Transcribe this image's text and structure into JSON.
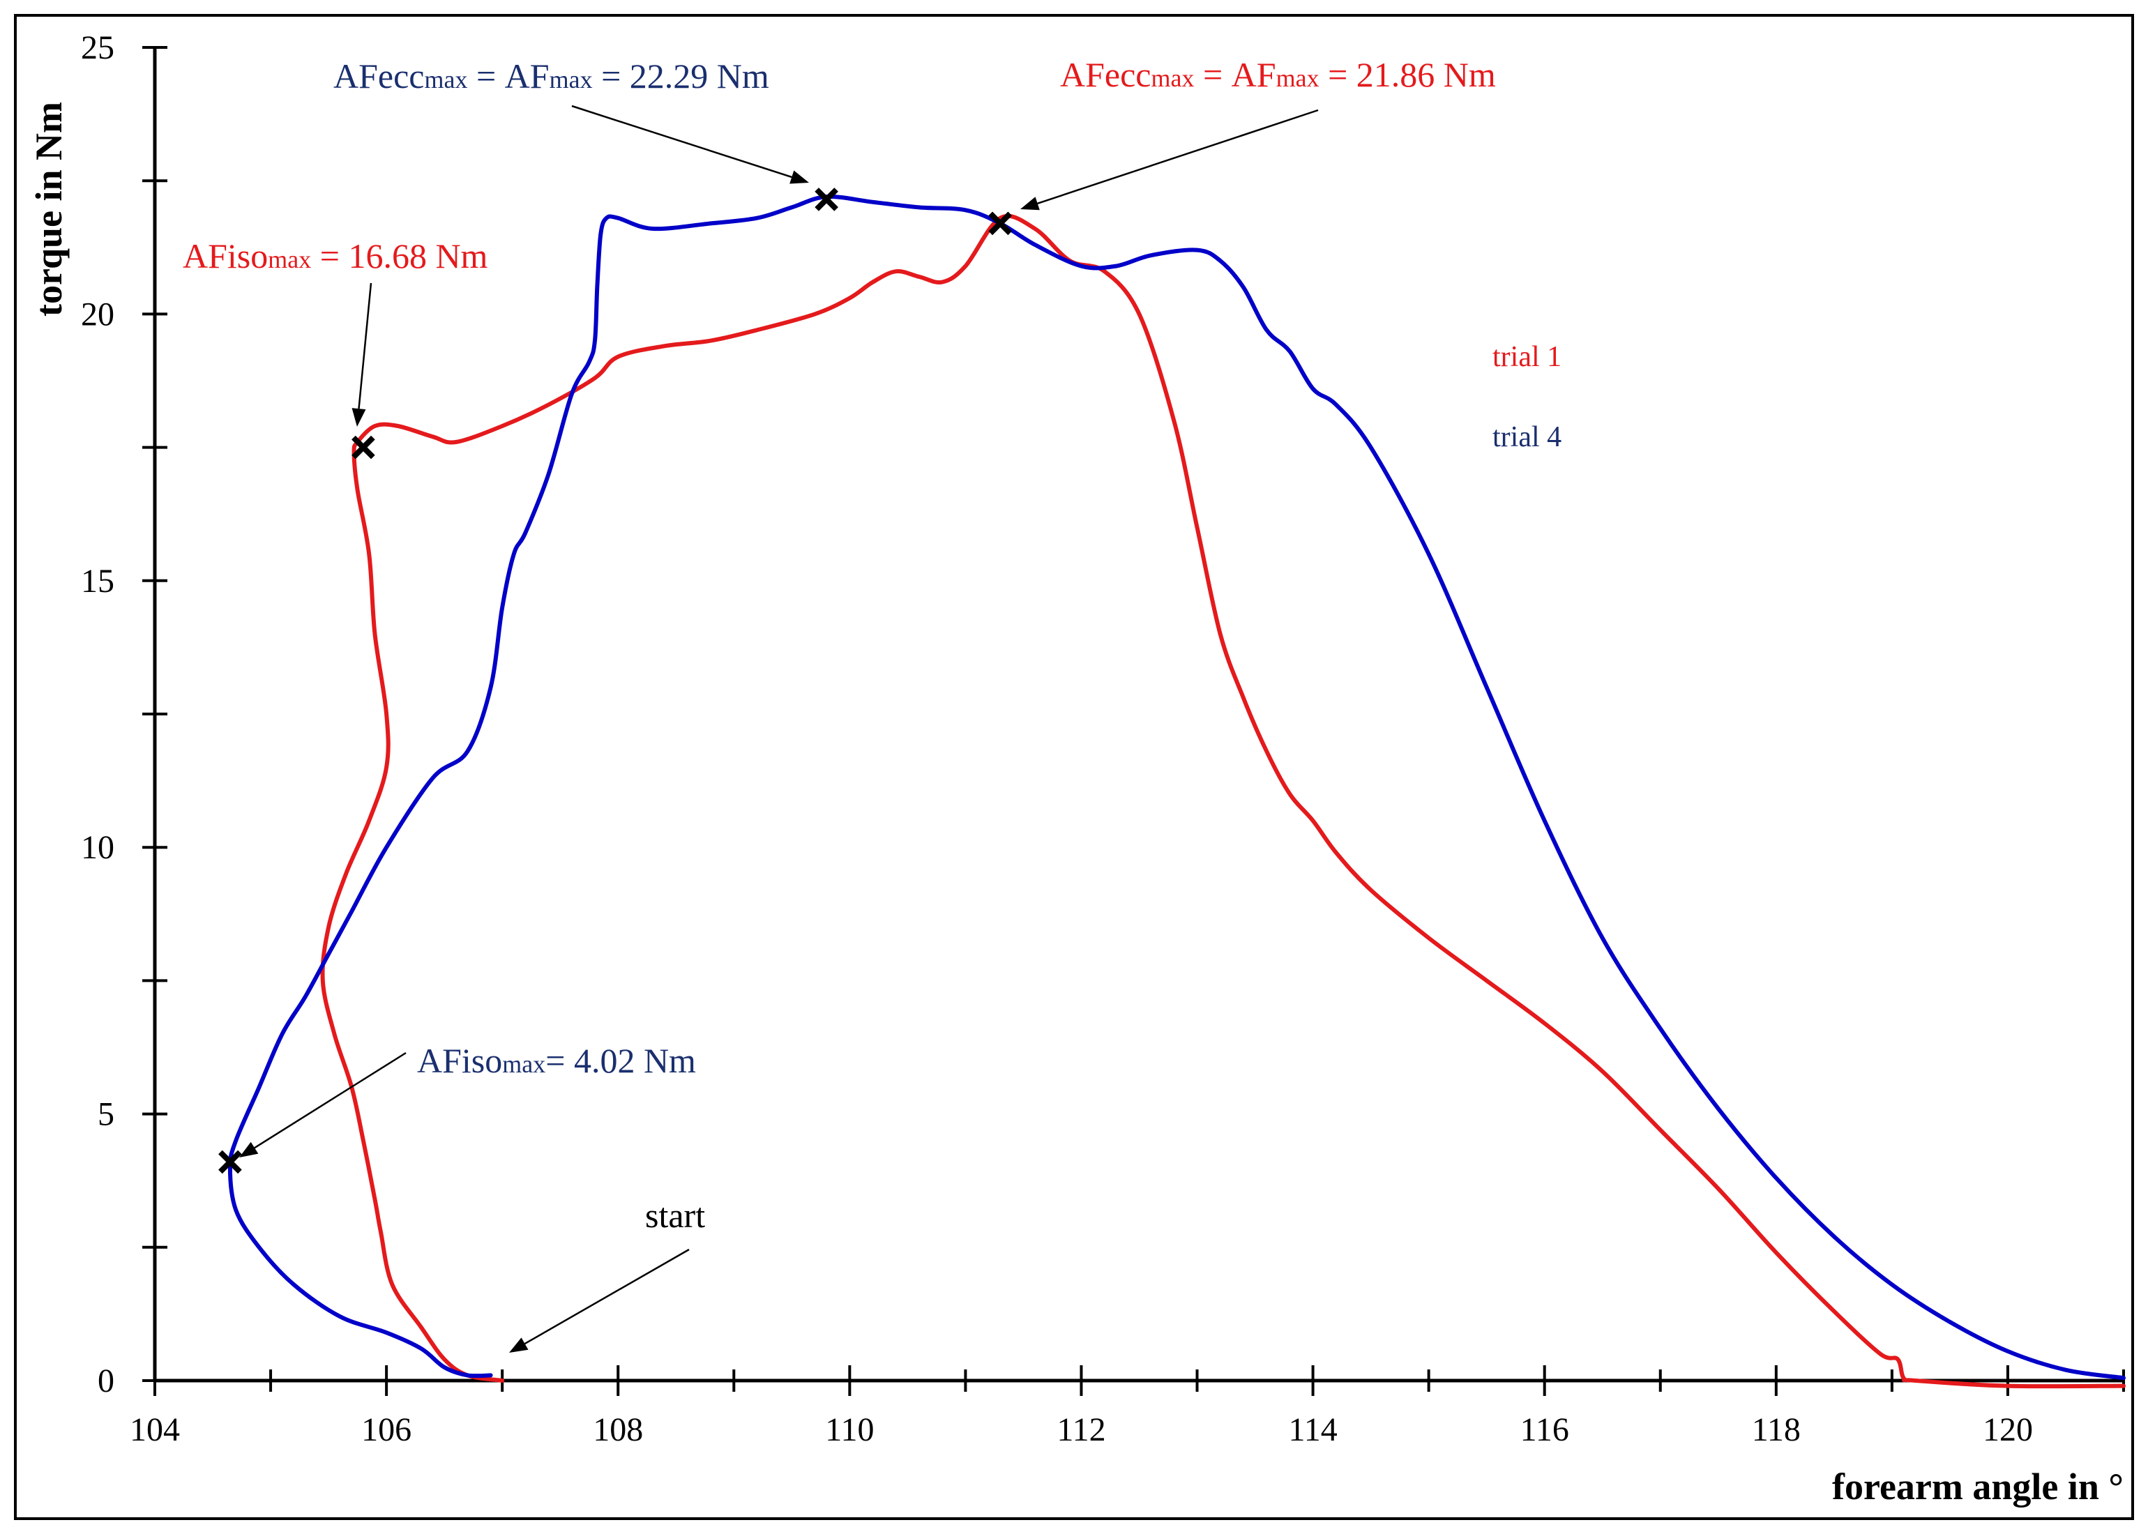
{
  "chart_data": {
    "type": "line",
    "title": "",
    "xlabel": "forearm angle in °",
    "ylabel": "torque in Nm",
    "xlim": [
      104,
      121
    ],
    "ylim": [
      0,
      25
    ],
    "xticks": [
      104,
      106,
      108,
      110,
      112,
      114,
      116,
      118,
      120
    ],
    "yticks": [
      0,
      5,
      10,
      15,
      20,
      25
    ],
    "grid": false,
    "legend_position": "right",
    "series": [
      {
        "name": "trial 1",
        "color": "#e41a1c",
        "x": [
          107.0,
          106.7,
          106.5,
          106.3,
          106.05,
          105.95,
          105.9,
          105.8,
          105.7,
          105.55,
          105.45,
          105.5,
          105.65,
          105.85,
          106.0,
          106.0,
          105.9,
          105.85,
          105.75,
          105.72,
          105.75,
          105.9,
          106.1,
          106.4,
          106.6,
          107.0,
          107.4,
          107.8,
          108.0,
          108.4,
          108.8,
          109.2,
          109.7,
          110.0,
          110.2,
          110.4,
          110.6,
          110.8,
          111.0,
          111.3,
          111.6,
          111.9,
          112.2,
          112.5,
          112.8,
          113.0,
          113.2,
          113.4,
          113.6,
          113.8,
          114.0,
          114.2,
          114.5,
          115.0,
          115.5,
          116.0,
          116.5,
          117.0,
          117.5,
          118.0,
          118.5,
          118.9,
          119.05,
          119.1,
          119.2,
          120.0,
          121.0
        ],
        "y": [
          0.0,
          0.1,
          0.4,
          1.0,
          1.8,
          2.8,
          3.4,
          4.5,
          5.5,
          6.5,
          7.5,
          8.5,
          9.5,
          10.5,
          11.5,
          12.5,
          14.0,
          15.5,
          16.7,
          17.4,
          17.6,
          17.9,
          17.9,
          17.7,
          17.6,
          17.9,
          18.3,
          18.8,
          19.2,
          19.4,
          19.5,
          19.7,
          20.0,
          20.3,
          20.6,
          20.8,
          20.7,
          20.6,
          20.9,
          21.8,
          21.6,
          21.0,
          20.8,
          20.0,
          18.0,
          16.0,
          14.0,
          12.8,
          11.8,
          11.0,
          10.5,
          9.9,
          9.2,
          8.3,
          7.5,
          6.7,
          5.8,
          4.7,
          3.6,
          2.4,
          1.3,
          0.5,
          0.4,
          0.05,
          0.0,
          -0.1,
          -0.1
        ]
      },
      {
        "name": "trial 4",
        "color": "#0000c8",
        "x": [
          106.9,
          106.7,
          106.5,
          106.3,
          106.0,
          105.6,
          105.2,
          104.9,
          104.7,
          104.65,
          104.7,
          104.9,
          105.1,
          105.3,
          105.5,
          105.7,
          106.0,
          106.4,
          106.7,
          106.9,
          107.0,
          107.1,
          107.2,
          107.4,
          107.6,
          107.75,
          107.8,
          107.82,
          107.85,
          107.9,
          108.0,
          108.3,
          108.8,
          109.2,
          109.5,
          109.8,
          110.2,
          110.6,
          111.0,
          111.3,
          111.6,
          112.0,
          112.3,
          112.6,
          113.0,
          113.2,
          113.4,
          113.6,
          113.8,
          114.0,
          114.2,
          114.5,
          115.0,
          115.5,
          116.0,
          116.5,
          117.0,
          117.5,
          118.0,
          118.5,
          119.0,
          119.5,
          120.0,
          120.5,
          121.0
        ],
        "y": [
          0.1,
          0.1,
          0.25,
          0.6,
          0.9,
          1.2,
          1.8,
          2.5,
          3.2,
          4.0,
          4.5,
          5.5,
          6.5,
          7.2,
          8.0,
          8.8,
          10.0,
          11.3,
          11.8,
          13.0,
          14.5,
          15.5,
          15.9,
          17.0,
          18.5,
          19.1,
          19.5,
          20.5,
          21.5,
          21.8,
          21.8,
          21.6,
          21.7,
          21.8,
          22.0,
          22.2,
          22.1,
          22.0,
          21.95,
          21.7,
          21.3,
          20.9,
          20.9,
          21.1,
          21.2,
          21.0,
          20.5,
          19.7,
          19.3,
          18.6,
          18.3,
          17.5,
          15.5,
          13.0,
          10.5,
          8.3,
          6.6,
          5.1,
          3.8,
          2.7,
          1.8,
          1.1,
          0.55,
          0.2,
          0.05
        ]
      }
    ],
    "markers": [
      {
        "x": 105.8,
        "y": 17.5,
        "series": "trial 1"
      },
      {
        "x": 111.3,
        "y": 21.7,
        "series": "trial 1"
      },
      {
        "x": 109.8,
        "y": 22.15,
        "series": "trial 4"
      },
      {
        "x": 104.65,
        "y": 4.1,
        "series": "trial 4"
      }
    ],
    "annotations": [
      {
        "id": "trial4-max",
        "label": "AFecc",
        "sub1": "max",
        "mid": " = AF",
        "sub2": "max",
        "tail": " = 22.29 Nm",
        "color": "#1a2f6e",
        "x": 109.8,
        "y": 22.15
      },
      {
        "id": "trial1-max",
        "label": "AFecc",
        "sub1": "max",
        "mid": " = AF",
        "sub2": "max",
        "tail": " = 21.86 Nm",
        "color": "#e41a1c",
        "x": 111.3,
        "y": 21.7
      },
      {
        "id": "trial1-iso",
        "label": "AFiso",
        "sub1": "max",
        "tail": " = 16.68 Nm",
        "color": "#e41a1c",
        "x": 105.8,
        "y": 17.5
      },
      {
        "id": "trial4-iso",
        "label": "AFiso",
        "sub1": "max",
        "tail": "= 4.02 Nm",
        "color": "#1a2f6e",
        "x": 104.65,
        "y": 4.1
      },
      {
        "id": "start",
        "label": "start",
        "color": "#000000",
        "x": 107.0,
        "y": 0.0
      }
    ]
  }
}
